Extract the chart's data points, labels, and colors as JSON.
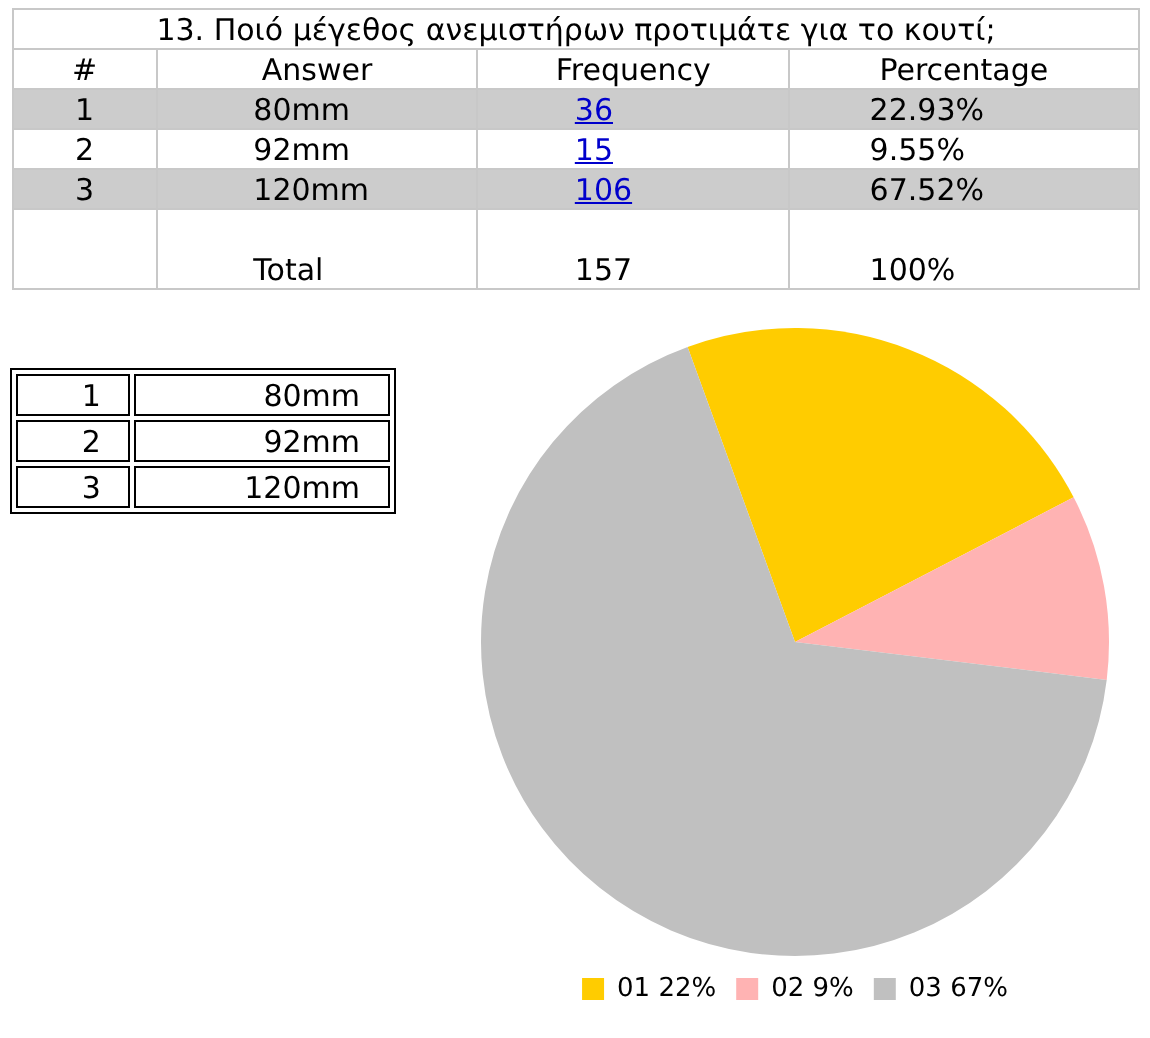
{
  "chart_data": {
    "type": "pie",
    "title": "13. Ποιό μέγεθος ανεμιστήρων προτιμάτε για το κουτί;",
    "categories": [
      "01 22%",
      "02 9%",
      "03 67%"
    ],
    "values": [
      22.93,
      9.55,
      67.52
    ],
    "colors": [
      "#ffcc00",
      "#ffb3b3",
      "#c0c0c0"
    ],
    "legend": "bottom",
    "annotations": [
      "#",
      "Answer",
      "Frequency",
      "Percentage",
      "1",
      "80mm",
      "36",
      "22.93%",
      "2",
      "92mm",
      "15",
      "9.55%",
      "3",
      "120mm",
      "106",
      "67.52%",
      "Total",
      "157",
      "100%",
      "1",
      "80mm",
      "2",
      "92mm",
      "3",
      "120mm"
    ]
  }
}
